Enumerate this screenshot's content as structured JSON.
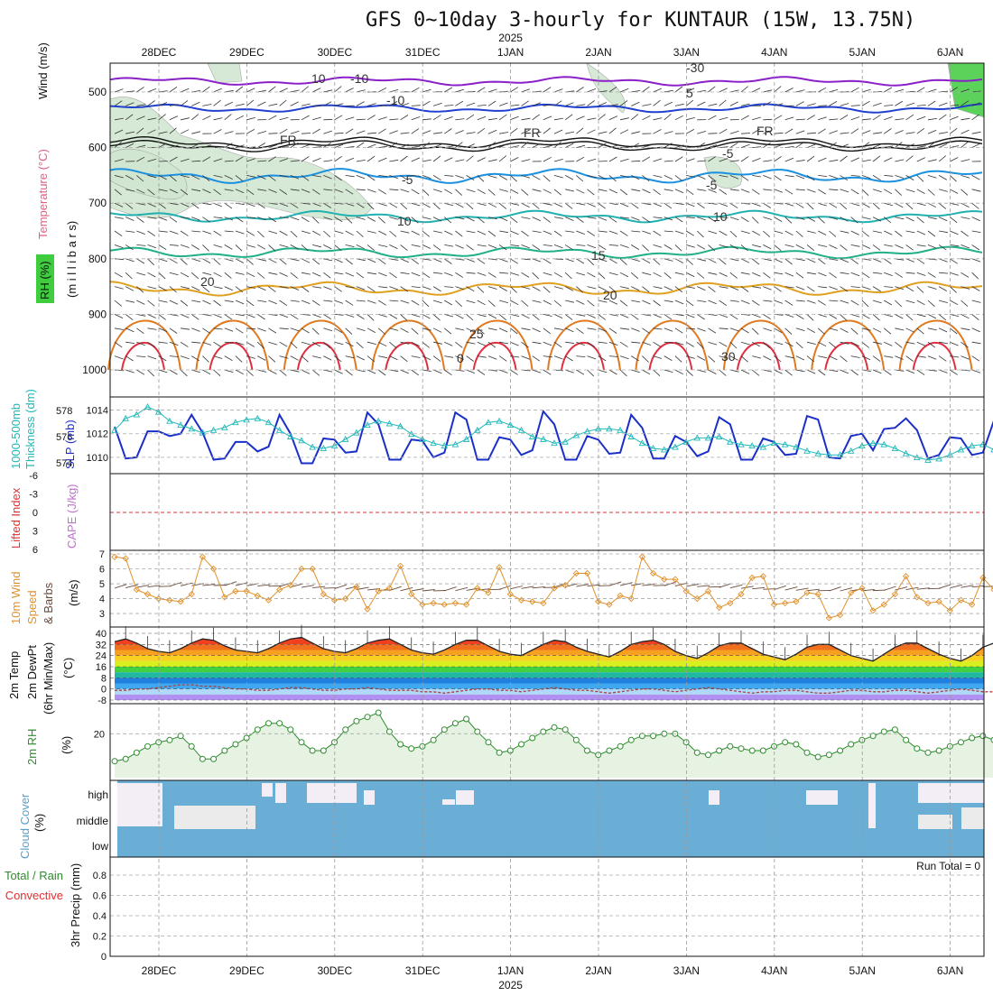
{
  "title": "GFS 0~10day 3-hourly for KUNTAUR (15W, 13.75N)",
  "year_label": "2025",
  "run_total": "Run Total = 0",
  "dates": [
    "28DEC",
    "29DEC",
    "30DEC",
    "31DEC",
    "1JAN",
    "2JAN",
    "3JAN",
    "4JAN",
    "5JAN",
    "6JAN"
  ],
  "colors": {
    "slp": "#1a2fc8",
    "thickness": "#20b8b8",
    "wind_speed": "#e0902a",
    "barb": "#6a4a3a",
    "rh": "#2e8b2e",
    "rh_fill": "#e6f2e2",
    "cloud": "#6aaed6",
    "cloud_gap": "#ebebeb",
    "li_zero": "#e03030",
    "temp_contours": [
      "#8a20c8",
      "#2040d0",
      "#1a90e0",
      "#20b0b0",
      "#20b088",
      "#e0a020",
      "#e07a20",
      "#e03040"
    ]
  },
  "panels": {
    "upper_air": {
      "labels": [
        "Wind (m/s)",
        "Temperature (°C)",
        "RH (%)"
      ],
      "ylabel": "(m i l l i b a r s)",
      "yticks": [
        500,
        600,
        700,
        800,
        900,
        1000
      ],
      "contour_labels": [
        "10",
        "-10",
        "-10",
        "5",
        "-5",
        "FR",
        "FR",
        "FR",
        "-5",
        "-5",
        "10",
        "10",
        "15",
        "20",
        "20",
        "25",
        "30",
        "0",
        "-30"
      ]
    },
    "slp_thickness": {
      "labels": [
        "1000-500mb",
        "Thickness (dm)",
        "SLP (mb)"
      ],
      "left_ticks": [
        578,
        576,
        574
      ],
      "right_ticks": [
        1014,
        1012,
        1010
      ]
    },
    "li_cape": {
      "labels": [
        "Lifted Index",
        "CAPE (J/kg)"
      ],
      "ticks": [
        "-6",
        "-3",
        "0",
        "3",
        "6"
      ]
    },
    "wind10m": {
      "labels": [
        "10m Wind",
        "Speed",
        "& Barbs",
        "(m/s)"
      ],
      "ticks": [
        7,
        6,
        5,
        4,
        3
      ]
    },
    "temp2m": {
      "labels": [
        "2m Temp",
        "2m DewPt",
        "(6hr Min/Max)",
        "(°C)"
      ],
      "ticks": [
        40,
        32,
        24,
        16,
        8,
        0,
        -8
      ]
    },
    "rh2m": {
      "labels": [
        "2m RH",
        "(%)"
      ],
      "ticks": [
        20
      ]
    },
    "cloud": {
      "labels": [
        "Cloud Cover",
        "(%)"
      ],
      "levels": [
        "high",
        "middle",
        "low"
      ]
    },
    "precip": {
      "labels": [
        "Total / Rain",
        "Convective",
        "3hr Precip (mm)"
      ],
      "ticks": [
        "0.8",
        "0.6",
        "0.4",
        "0.2",
        "0"
      ]
    }
  },
  "chart_data": [
    {
      "type": "line",
      "title": "1000-500mb Thickness (dm) / SLP (mb)",
      "x_unit": "3-hourly steps",
      "series": [
        {
          "name": "SLP (mb)",
          "values": [
            1012.6,
            1009.9,
            1010,
            1012.2,
            1012.2,
            1011.8,
            1012,
            1013.6,
            1012.1,
            1009.8,
            1009.9,
            1011.3,
            1011.3,
            1010.5,
            1010.9,
            1013.6,
            1012,
            1009.5,
            1009.5,
            1011.6,
            1011.5,
            1010.4,
            1010.5,
            1013.8,
            1012.8,
            1009.8,
            1009.8,
            1011.5,
            1011.4,
            1010,
            1010.4,
            1013.8,
            1013.2,
            1009.8,
            1009.8,
            1011.7,
            1011.5,
            1010.2,
            1010.6,
            1013.9,
            1012.8,
            1009.8,
            1009.8,
            1011.8,
            1011.5,
            1010.3,
            1010.4,
            1013.6,
            1012.5,
            1009.9,
            1009.9,
            1011.8,
            1011.3,
            1010.1,
            1010.5,
            1013.4,
            1012.8,
            1009.8,
            1009.8,
            1011.6,
            1011.3,
            1010.2,
            1010.3,
            1013.5,
            1013.2,
            1010,
            1009.9,
            1011.8,
            1012,
            1010.6,
            1012.4,
            1012.5,
            1013.3,
            1012.3,
            1009.9,
            1010.2,
            1011.7,
            1011.6,
            1010.2,
            1010.4,
            1013.1,
            1012.3,
            1009.3,
            1009.2,
            1011.1,
            1010.5,
            1010.1
          ]
        },
        {
          "name": "Thickness (dm)",
          "values": [
            576.5,
            577.4,
            577.7,
            578.3,
            577.9,
            577.2,
            576.9,
            576.6,
            576.3,
            576.5,
            576.7,
            577.1,
            577.3,
            577.4,
            577.1,
            576.5,
            576,
            575.7,
            575.2,
            575.1,
            575.3,
            575.8,
            576.3,
            576.9,
            577.2,
            577,
            576.8,
            576.2,
            575.8,
            575.5,
            575.3,
            575.4,
            575.8,
            576.5,
            577.1,
            577.2,
            576.9,
            576.5,
            576,
            575.8,
            575.5,
            575.6,
            576.1,
            576.4,
            576.6,
            576.6,
            576.5,
            576,
            575.5,
            575.1,
            575,
            575.2,
            575.6,
            575.9,
            575.9,
            576,
            575.6,
            575.4,
            575.3,
            575.2,
            575.5,
            575.4,
            575.2,
            574.9,
            574.7,
            574.6,
            574.6,
            574.9,
            575.3,
            575.5,
            575.4,
            575.1,
            574.7,
            574.4,
            574.2,
            574.3,
            574.6,
            575,
            575.3,
            575.4,
            575,
            574.6,
            574.2,
            573.9,
            574.2,
            574.8,
            575.1,
            575.2,
            574.7,
            574.4,
            574.7,
            574.3,
            573.7
          ]
        }
      ]
    },
    {
      "type": "line",
      "title": "10m Wind Speed (m/s)",
      "series": [
        {
          "name": "Wind Speed (m/s)",
          "values": [
            6.8,
            6.7,
            4.6,
            4.3,
            4,
            3.9,
            3.8,
            4.3,
            6.8,
            6,
            4.1,
            4.5,
            4.5,
            4.2,
            3.9,
            4.6,
            4.9,
            6,
            6,
            4.3,
            3.9,
            4,
            4.8,
            3.3,
            4.5,
            4.7,
            6.2,
            4.3,
            3.6,
            3.7,
            3.6,
            3.7,
            3.6,
            4.7,
            4.4,
            6.1,
            4.3,
            3.9,
            3.8,
            3.7,
            4.7,
            4.9,
            5.7,
            5.7,
            3.8,
            3.6,
            4.2,
            4,
            6.8,
            5.7,
            5.3,
            5.3,
            4.5,
            4,
            4.5,
            3.4,
            3.7,
            4.3,
            5.4,
            5.5,
            3.6,
            3.7,
            3.8,
            4.4,
            4.3,
            2.7,
            2.9,
            4.4,
            4.7,
            3.2,
            3.6,
            4.3,
            5.5,
            4.1,
            3.7,
            3.8,
            3.2,
            3.9,
            3.6,
            5.4,
            4.6,
            3.6,
            3.1,
            3.5,
            4.1,
            3.7,
            3.2,
            2.9
          ]
        }
      ]
    },
    {
      "type": "area",
      "title": "2m RH",
      "series": [
        {
          "name": "2m RH (%)",
          "values": [
            7,
            8,
            11,
            14,
            16,
            17,
            19,
            14,
            8,
            8,
            12,
            15,
            18,
            22,
            25,
            25,
            22,
            16,
            12,
            12,
            16,
            22,
            26,
            28,
            30,
            21,
            15,
            13,
            14,
            17,
            22,
            25,
            27,
            21,
            16,
            11,
            12,
            15,
            18,
            21,
            23,
            22,
            17,
            12,
            10,
            12,
            14,
            17,
            19,
            19,
            20,
            20,
            16,
            11,
            10,
            12,
            14,
            13,
            12,
            12,
            14,
            16,
            15,
            11,
            9,
            10,
            12,
            15,
            17,
            19,
            21,
            22,
            17,
            13,
            11,
            12,
            14,
            16,
            18,
            19,
            17,
            13,
            10,
            11,
            12,
            14,
            14,
            14
          ]
        }
      ]
    },
    {
      "type": "area",
      "title": "2m Temp (°C)",
      "series": [
        {
          "name": "2m Temp (°C)",
          "values": [
            34,
            36,
            33,
            29,
            27,
            26,
            29,
            33,
            36,
            35,
            31,
            28,
            27,
            26,
            29,
            33,
            36,
            37,
            33,
            29,
            27,
            26,
            29,
            33,
            35,
            36,
            32,
            28,
            26,
            25,
            28,
            32,
            35,
            35,
            31,
            27,
            25,
            24,
            28,
            32,
            35,
            34,
            30,
            27,
            25,
            23,
            27,
            32,
            34,
            35,
            32,
            27,
            24,
            22,
            26,
            31,
            33,
            33,
            29,
            25,
            23,
            21,
            25,
            30,
            32,
            32,
            28,
            24,
            22,
            20,
            25,
            30,
            33,
            33,
            29,
            25,
            22,
            20,
            24,
            30,
            33,
            33,
            30,
            26,
            24,
            23
          ]
        },
        {
          "name": "2m DewPt (°C)",
          "values": [
            -1,
            -1,
            0,
            0,
            1,
            2,
            3,
            3,
            2,
            2,
            1,
            0,
            0,
            -1,
            -1,
            0,
            1,
            1,
            0,
            -1,
            -1,
            0,
            0,
            1,
            0,
            -1,
            -1,
            -1,
            -2,
            -2,
            -3,
            -2,
            -1,
            0,
            0,
            -1,
            -1,
            -2,
            -1,
            0,
            1,
            0,
            -1,
            -1,
            -2,
            -3,
            -2,
            -1,
            0,
            0,
            -1,
            -2,
            -1,
            0,
            1,
            0,
            -1,
            -2,
            -3,
            -2,
            -2,
            -1,
            -1,
            -2,
            -3,
            -3,
            -2,
            -1,
            -1,
            -2,
            -2,
            -1,
            -1,
            -2,
            -3,
            -2,
            -1,
            0,
            -1,
            -2,
            -2,
            -1,
            -2,
            -2,
            -3,
            -3
          ]
        }
      ]
    },
    {
      "type": "line",
      "title": "1000-500mb Thickness (dm)",
      "series": [
        {
          "name": "Lifted Index",
          "values": []
        },
        {
          "name": "CAPE (J/kg)",
          "values": []
        }
      ]
    },
    {
      "type": "bar",
      "title": "3hr Precip (mm)",
      "series": [
        {
          "name": "Total / Rain",
          "values": [
            0
          ]
        },
        {
          "name": "Convective",
          "values": [
            0
          ]
        }
      ]
    }
  ]
}
